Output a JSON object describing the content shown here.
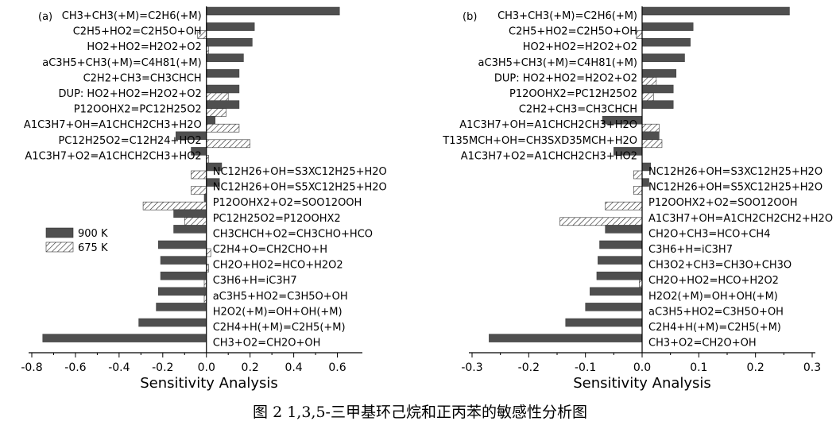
{
  "figure_caption": "图 2 1,3,5-三甲基环己烷和正丙苯的敏感性分析图",
  "legend": {
    "series_900": "900 K",
    "series_675": "675 K"
  },
  "chart_data": [
    {
      "type": "bar",
      "orientation": "horizontal",
      "panel_label": "(a)",
      "xlabel": "Sensitivity Analysis",
      "xlim": [
        -0.8,
        0.7
      ],
      "xticks": [
        -0.8,
        -0.6,
        -0.4,
        -0.2,
        0.0,
        0.2,
        0.4,
        0.6
      ],
      "tick_labels": [
        "-0.8",
        "-0.6",
        "-0.4",
        "-0.2",
        "0.0",
        "0.2",
        "0.4",
        "0.6"
      ],
      "categories": [
        "CH3+CH3(+M)=C2H6(+M)",
        "C2H5+HO2=C2H5O+OH",
        "HO2+HO2=H2O2+O2",
        "aC3H5+CH3(+M)=C4H81(+M)",
        "C2H2+CH3=CH3CHCH",
        "DUP: HO2+HO2=H2O2+O2",
        "P12OOHX2=PC12H25O2",
        "A1C3H7+OH=A1CHCH2CH3+H2O",
        "PC12H25O2=C12H24+HO2",
        "A1C3H7+O2=A1CHCH2CH3+HO2",
        "NC12H26+OH=S3XC12H25+H2O",
        "NC12H26+OH=S5XC12H25+H2O",
        "P12OOHX2+O2=SOO12OOH",
        "PC12H25O2=P12OOHX2",
        "CH3CHCH+O2=CH3CHO+HCO",
        "C2H4+O=CH2CHO+H",
        "CH2O+HO2=HCO+H2O2",
        "C3H6+H=iC3H7",
        "aC3H5+HO2=C3H5O+OH",
        "H2O2(+M)=OH+OH(+M)",
        "C2H4+H(+M)=C2H5(+M)",
        "CH3+O2=CH2O+OH"
      ],
      "series": [
        {
          "name": "900 K",
          "values": [
            0.61,
            0.22,
            0.21,
            0.17,
            0.15,
            0.15,
            0.15,
            0.04,
            -0.14,
            -0.07,
            0.07,
            0.06,
            -0.01,
            -0.15,
            -0.15,
            -0.22,
            -0.21,
            -0.21,
            -0.22,
            -0.23,
            -0.31,
            -0.75
          ]
        },
        {
          "name": "675 K",
          "values": [
            0.0,
            -0.04,
            0.01,
            0.0,
            0.0,
            0.1,
            0.09,
            0.15,
            0.2,
            0.01,
            -0.07,
            -0.07,
            -0.29,
            -0.1,
            0.0,
            0.02,
            0.01,
            -0.01,
            -0.01,
            0.0,
            0.0,
            0.0
          ]
        }
      ]
    },
    {
      "type": "bar",
      "orientation": "horizontal",
      "panel_label": "(b)",
      "xlabel": "Sensitivity Analysis",
      "xlim": [
        -0.3,
        0.3
      ],
      "xticks": [
        -0.3,
        -0.2,
        -0.1,
        0.0,
        0.1,
        0.2,
        0.3
      ],
      "tick_labels": [
        "-0.3",
        "-0.2",
        "-0.1",
        "0.0",
        "0.1",
        "0.2",
        "0.3"
      ],
      "categories": [
        "CH3+CH3(+M)=C2H6(+M)",
        "C2H5+HO2=C2H5O+OH",
        "HO2+HO2=H2O2+O2",
        "aC3H5+CH3(+M)=C4H81(+M)",
        "DUP: HO2+HO2=H2O2+O2",
        "P12OOHX2=PC12H25O2",
        "C2H2+CH3=CH3CHCH",
        "A1C3H7+OH=A1CHCH2CH3+H2O",
        "T135MCH+OH=CH3SXD35MCH+H2O",
        "A1C3H7+O2=A1CHCH2CH3+HO2",
        "NC12H26+OH=S3XC12H25+H2O",
        "NC12H26+OH=S5XC12H25+H2O",
        "P12OOHX2+O2=SOO12OOH",
        "A1C3H7+OH=A1CH2CH2CH2+H2O",
        "CH2O+CH3=HCO+CH4",
        "C3H6+H=iC3H7",
        "CH3O2+CH3=CH3O+CH3O",
        "CH2O+HO2=HCO+H2O2",
        "H2O2(+M)=OH+OH(+M)",
        "aC3H5+HO2=C3H5O+OH",
        "C2H4+H(+M)=C2H5(+M)",
        "CH3+O2=CH2O+OH"
      ],
      "series": [
        {
          "name": "900 K",
          "values": [
            0.26,
            0.09,
            0.085,
            0.075,
            0.06,
            0.055,
            0.055,
            -0.07,
            0.03,
            -0.05,
            0.015,
            0.012,
            0.0,
            0.0,
            -0.065,
            -0.075,
            -0.078,
            -0.08,
            -0.092,
            -0.1,
            -0.135,
            -0.27
          ]
        },
        {
          "name": "675 K",
          "values": [
            0.0,
            -0.01,
            0.0,
            0.0,
            0.025,
            0.02,
            0.0,
            0.03,
            0.035,
            0.0,
            -0.015,
            -0.015,
            -0.065,
            -0.145,
            0.0,
            0.0,
            0.0,
            -0.005,
            0.0,
            0.0,
            0.0,
            0.0
          ]
        }
      ]
    }
  ]
}
